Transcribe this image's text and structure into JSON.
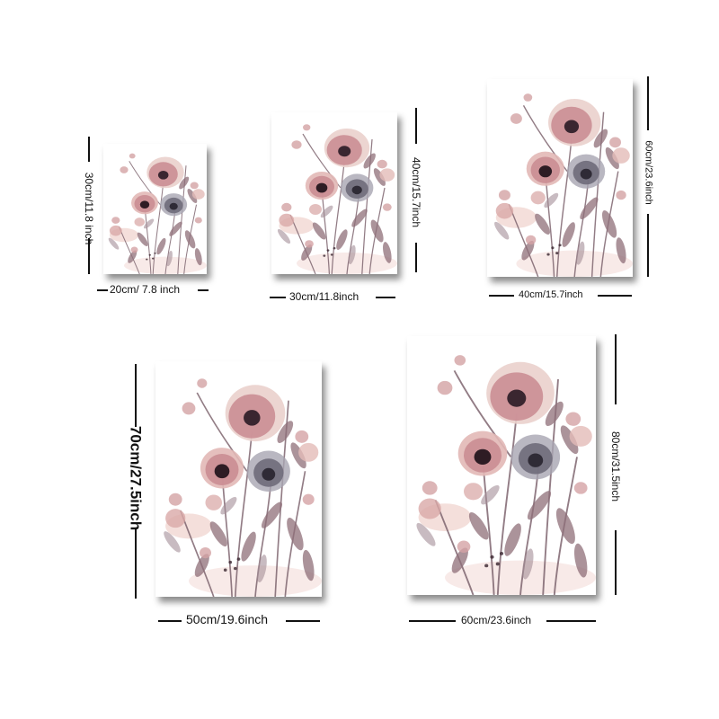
{
  "sizes": [
    {
      "width_label": "20cm/ 7.8 inch",
      "height_label": "30cm/11.8 inch"
    },
    {
      "width_label": "30cm/11.8inch",
      "height_label": "40cm/15.7inch"
    },
    {
      "width_label": "40cm/15.7inch",
      "height_label": "60cm/23.6inch"
    },
    {
      "width_label": "50cm/19.6inch",
      "height_label": "70cm/27.5inch"
    },
    {
      "width_label": "60cm/23.6inch",
      "height_label": "80cm/31.5inch"
    }
  ],
  "colors": {
    "petal_pink": "#c98a90",
    "petal_light": "#ead0cc",
    "petal_dark": "#3a2630",
    "petal_grey": "#6f6c7a",
    "leaf_mauve": "#8f6f79"
  }
}
